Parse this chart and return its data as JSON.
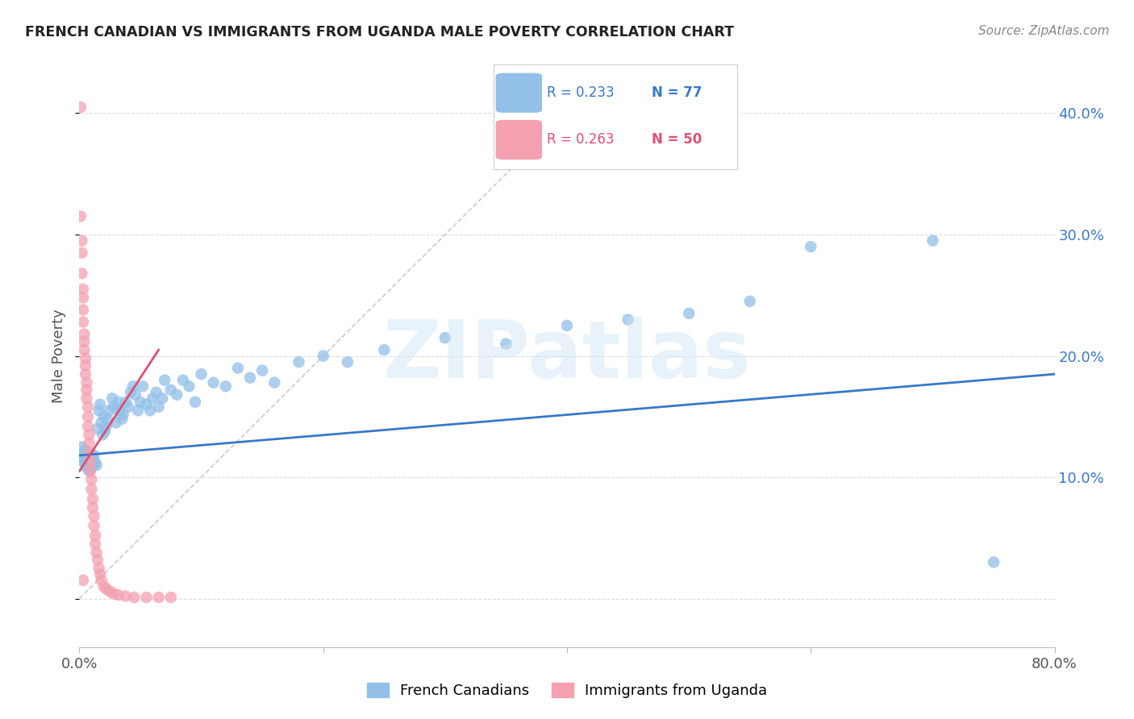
{
  "title": "FRENCH CANADIAN VS IMMIGRANTS FROM UGANDA MALE POVERTY CORRELATION CHART",
  "source": "Source: ZipAtlas.com",
  "ylabel": "Male Poverty",
  "xlim": [
    0.0,
    0.8
  ],
  "ylim": [
    -0.04,
    0.44
  ],
  "yticks": [
    0.0,
    0.1,
    0.2,
    0.3,
    0.4
  ],
  "xticks": [
    0.0,
    0.2,
    0.4,
    0.6,
    0.8
  ],
  "blue_color": "#92c0e8",
  "pink_color": "#f4a0b0",
  "blue_line_color": "#3a78c9",
  "pink_line_color": "#e05070",
  "diag_line_color": "#cccccc",
  "watermark": "ZIPatlas",
  "blue_scatter_x": [
    0.002,
    0.003,
    0.003,
    0.004,
    0.004,
    0.005,
    0.005,
    0.006,
    0.006,
    0.007,
    0.007,
    0.008,
    0.008,
    0.009,
    0.01,
    0.01,
    0.011,
    0.012,
    0.013,
    0.014,
    0.015,
    0.016,
    0.017,
    0.018,
    0.019,
    0.02,
    0.021,
    0.022,
    0.023,
    0.025,
    0.027,
    0.028,
    0.03,
    0.032,
    0.033,
    0.035,
    0.036,
    0.038,
    0.04,
    0.042,
    0.044,
    0.046,
    0.048,
    0.05,
    0.052,
    0.055,
    0.058,
    0.06,
    0.063,
    0.065,
    0.068,
    0.07,
    0.075,
    0.08,
    0.085,
    0.09,
    0.095,
    0.1,
    0.11,
    0.12,
    0.13,
    0.14,
    0.15,
    0.16,
    0.18,
    0.2,
    0.22,
    0.25,
    0.3,
    0.35,
    0.4,
    0.45,
    0.5,
    0.55,
    0.6,
    0.7,
    0.75
  ],
  "blue_scatter_y": [
    0.125,
    0.12,
    0.115,
    0.118,
    0.112,
    0.11,
    0.122,
    0.108,
    0.115,
    0.112,
    0.118,
    0.105,
    0.11,
    0.12,
    0.113,
    0.108,
    0.115,
    0.118,
    0.112,
    0.11,
    0.14,
    0.155,
    0.16,
    0.145,
    0.135,
    0.15,
    0.138,
    0.142,
    0.148,
    0.155,
    0.165,
    0.158,
    0.145,
    0.162,
    0.155,
    0.148,
    0.152,
    0.162,
    0.158,
    0.17,
    0.175,
    0.168,
    0.155,
    0.162,
    0.175,
    0.16,
    0.155,
    0.165,
    0.17,
    0.158,
    0.165,
    0.18,
    0.172,
    0.168,
    0.18,
    0.175,
    0.162,
    0.185,
    0.178,
    0.175,
    0.19,
    0.182,
    0.188,
    0.178,
    0.195,
    0.2,
    0.195,
    0.205,
    0.215,
    0.21,
    0.225,
    0.23,
    0.235,
    0.245,
    0.29,
    0.295,
    0.03
  ],
  "pink_scatter_x": [
    0.001,
    0.001,
    0.002,
    0.002,
    0.002,
    0.003,
    0.003,
    0.003,
    0.003,
    0.004,
    0.004,
    0.004,
    0.005,
    0.005,
    0.005,
    0.006,
    0.006,
    0.006,
    0.007,
    0.007,
    0.007,
    0.008,
    0.008,
    0.008,
    0.009,
    0.009,
    0.01,
    0.01,
    0.011,
    0.011,
    0.012,
    0.012,
    0.013,
    0.013,
    0.014,
    0.015,
    0.016,
    0.017,
    0.018,
    0.02,
    0.022,
    0.025,
    0.028,
    0.032,
    0.038,
    0.045,
    0.055,
    0.065,
    0.075,
    0.003
  ],
  "pink_scatter_y": [
    0.405,
    0.315,
    0.295,
    0.285,
    0.268,
    0.255,
    0.248,
    0.238,
    0.228,
    0.218,
    0.212,
    0.205,
    0.198,
    0.192,
    0.185,
    0.178,
    0.172,
    0.165,
    0.158,
    0.15,
    0.142,
    0.135,
    0.128,
    0.12,
    0.112,
    0.105,
    0.098,
    0.09,
    0.082,
    0.075,
    0.068,
    0.06,
    0.052,
    0.045,
    0.038,
    0.032,
    0.025,
    0.02,
    0.015,
    0.01,
    0.008,
    0.006,
    0.004,
    0.003,
    0.002,
    0.001,
    0.001,
    0.001,
    0.001,
    0.015
  ],
  "blue_trend_x": [
    0.0,
    0.8
  ],
  "blue_trend_y": [
    0.118,
    0.185
  ],
  "pink_trend_x": [
    0.0,
    0.065
  ],
  "pink_trend_y": [
    0.105,
    0.205
  ],
  "legend_blue_R": "R = 0.233",
  "legend_blue_N": "N = 77",
  "legend_pink_R": "R = 0.263",
  "legend_pink_N": "N = 50"
}
